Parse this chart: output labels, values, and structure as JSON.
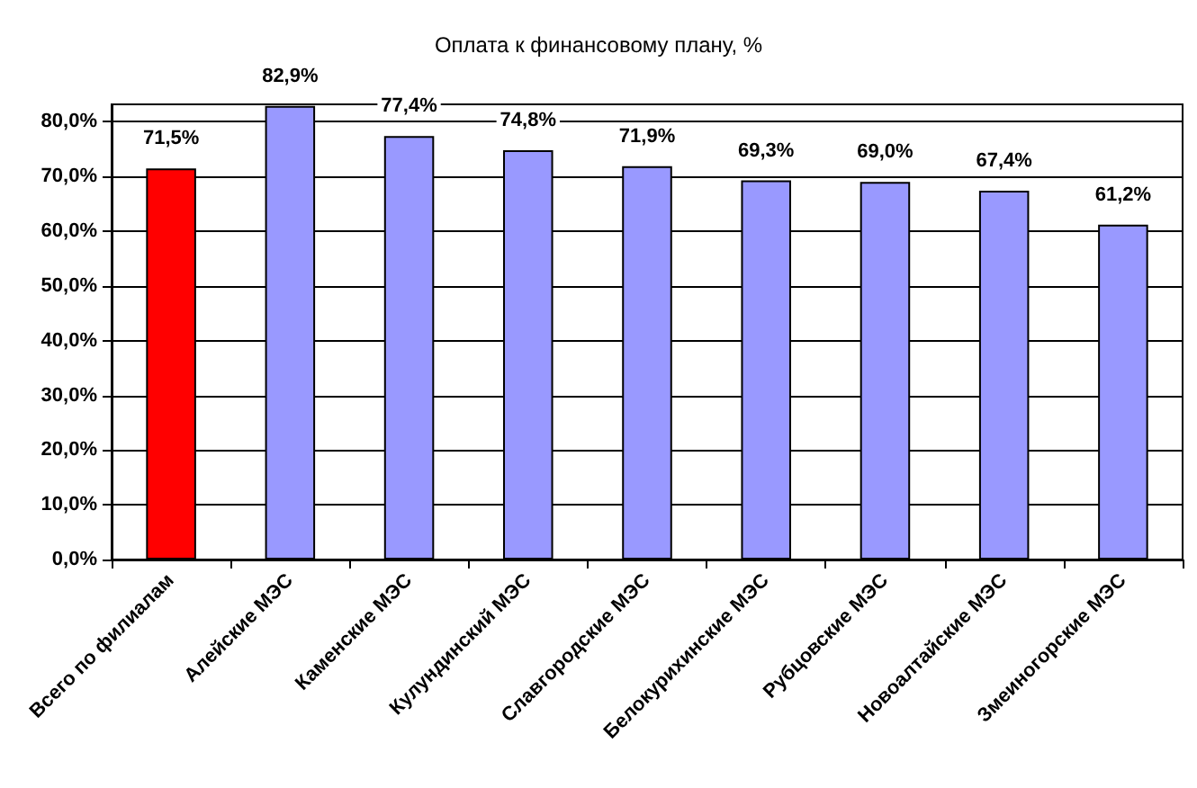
{
  "chart_data": {
    "type": "bar",
    "title": "Оплата к финансовому плану, %",
    "categories": [
      "Всего по филиалам",
      "Алейские МЭС",
      "Каменские МЭС",
      "Кулундинский МЭС",
      "Славгородские МЭС",
      "Белокурихинские МЭС",
      "Рубцовские МЭС",
      "Новоалтайские МЭС",
      "Змеиногорские МЭС"
    ],
    "values": [
      71.5,
      82.9,
      77.4,
      74.8,
      71.9,
      69.3,
      69.0,
      67.4,
      61.2
    ],
    "value_labels": [
      "71,5%",
      "82,9%",
      "77,4%",
      "74,8%",
      "71,9%",
      "69,3%",
      "69,0%",
      "67,4%",
      "61,2%"
    ],
    "colors": [
      "#ff0000",
      "#9999ff",
      "#9999ff",
      "#9999ff",
      "#9999ff",
      "#9999ff",
      "#9999ff",
      "#9999ff",
      "#9999ff"
    ],
    "ylim": [
      0,
      83.2
    ],
    "yticks": [
      {
        "value": 0,
        "label": "0,0%"
      },
      {
        "value": 10,
        "label": "10,0%"
      },
      {
        "value": 20,
        "label": "20,0%"
      },
      {
        "value": 30,
        "label": "30,0%"
      },
      {
        "value": 40,
        "label": "40,0%"
      },
      {
        "value": 50,
        "label": "50,0%"
      },
      {
        "value": 60,
        "label": "60,0%"
      },
      {
        "value": 70,
        "label": "70,0%"
      },
      {
        "value": 80,
        "label": "80,0%"
      }
    ],
    "grid": "y"
  }
}
